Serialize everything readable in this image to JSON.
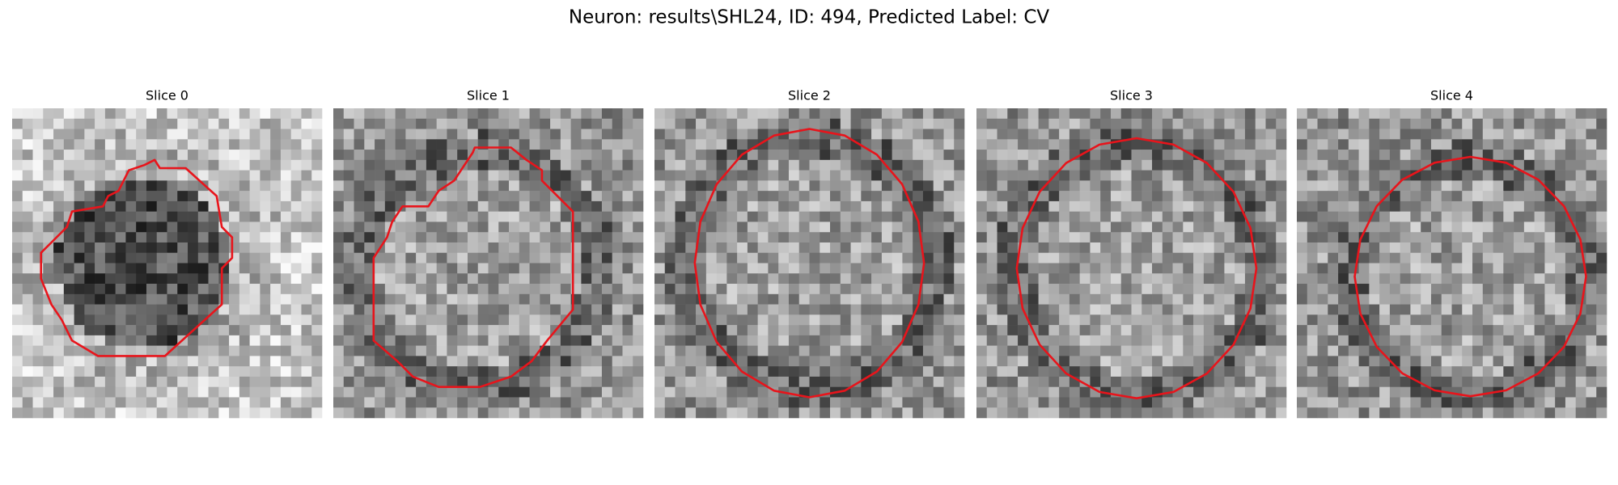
{
  "title": "Neuron: results\\SHL24, ID: 494, Predicted Label: CV",
  "panels": [
    {
      "title": "Slice 0"
    },
    {
      "title": "Slice 1"
    },
    {
      "title": "Slice 2"
    },
    {
      "title": "Slice 3"
    },
    {
      "title": "Slice 4"
    }
  ]
}
